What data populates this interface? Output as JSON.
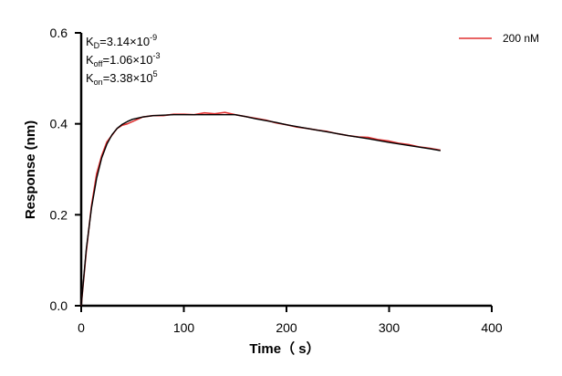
{
  "chart_data": {
    "type": "line",
    "xlabel": "Time（ s）",
    "ylabel": "Response (nm)",
    "xlim": [
      0,
      400
    ],
    "ylim": [
      0,
      0.6
    ],
    "xticks": [
      0,
      100,
      200,
      300,
      400
    ],
    "yticks": [
      0.0,
      0.2,
      0.4,
      0.6
    ],
    "xtick_labels": [
      "0",
      "100",
      "200",
      "300",
      "400"
    ],
    "ytick_labels": [
      "0.0",
      "0.2",
      "0.4",
      "0.6"
    ],
    "grid": false,
    "legend_position": "top-right",
    "annotations": {
      "kd": {
        "main": "K",
        "sub": "D",
        "mid": "=3.14×10",
        "sup": "-9"
      },
      "koff": {
        "main": "K",
        "sub": "off",
        "mid": "=1.06×10",
        "sup": "-3"
      },
      "kon": {
        "main": "K",
        "sub": "on",
        "mid": "=3.38×10",
        "sup": "5"
      }
    },
    "series": [
      {
        "name": "200 nM",
        "color": "#e03030",
        "x": [
          0,
          5,
          10,
          15,
          20,
          25,
          30,
          35,
          40,
          45,
          50,
          55,
          60,
          70,
          80,
          90,
          100,
          110,
          120,
          130,
          140,
          150,
          160,
          170,
          180,
          190,
          200,
          210,
          220,
          230,
          240,
          250,
          260,
          270,
          280,
          290,
          300,
          310,
          320,
          330,
          340,
          350
        ],
        "values": [
          0.0,
          0.12,
          0.22,
          0.29,
          0.33,
          0.36,
          0.375,
          0.39,
          0.397,
          0.4,
          0.405,
          0.41,
          0.415,
          0.418,
          0.418,
          0.421,
          0.421,
          0.42,
          0.424,
          0.422,
          0.425,
          0.42,
          0.416,
          0.412,
          0.408,
          0.402,
          0.398,
          0.393,
          0.39,
          0.386,
          0.383,
          0.378,
          0.374,
          0.371,
          0.37,
          0.365,
          0.362,
          0.357,
          0.354,
          0.349,
          0.346,
          0.342
        ]
      },
      {
        "fit": true,
        "color": "#000000",
        "x": [
          0,
          5,
          10,
          15,
          20,
          25,
          30,
          35,
          40,
          45,
          50,
          60,
          70,
          80,
          90,
          100,
          110,
          120,
          130,
          140,
          150,
          160,
          170,
          180,
          190,
          200,
          220,
          240,
          260,
          280,
          300,
          320,
          340,
          350
        ],
        "values": [
          0.0,
          0.125,
          0.215,
          0.28,
          0.325,
          0.355,
          0.376,
          0.39,
          0.399,
          0.405,
          0.41,
          0.415,
          0.418,
          0.419,
          0.42,
          0.42,
          0.42,
          0.42,
          0.42,
          0.42,
          0.42,
          0.416,
          0.411,
          0.407,
          0.403,
          0.398,
          0.39,
          0.382,
          0.374,
          0.367,
          0.359,
          0.352,
          0.345,
          0.341
        ]
      }
    ]
  }
}
